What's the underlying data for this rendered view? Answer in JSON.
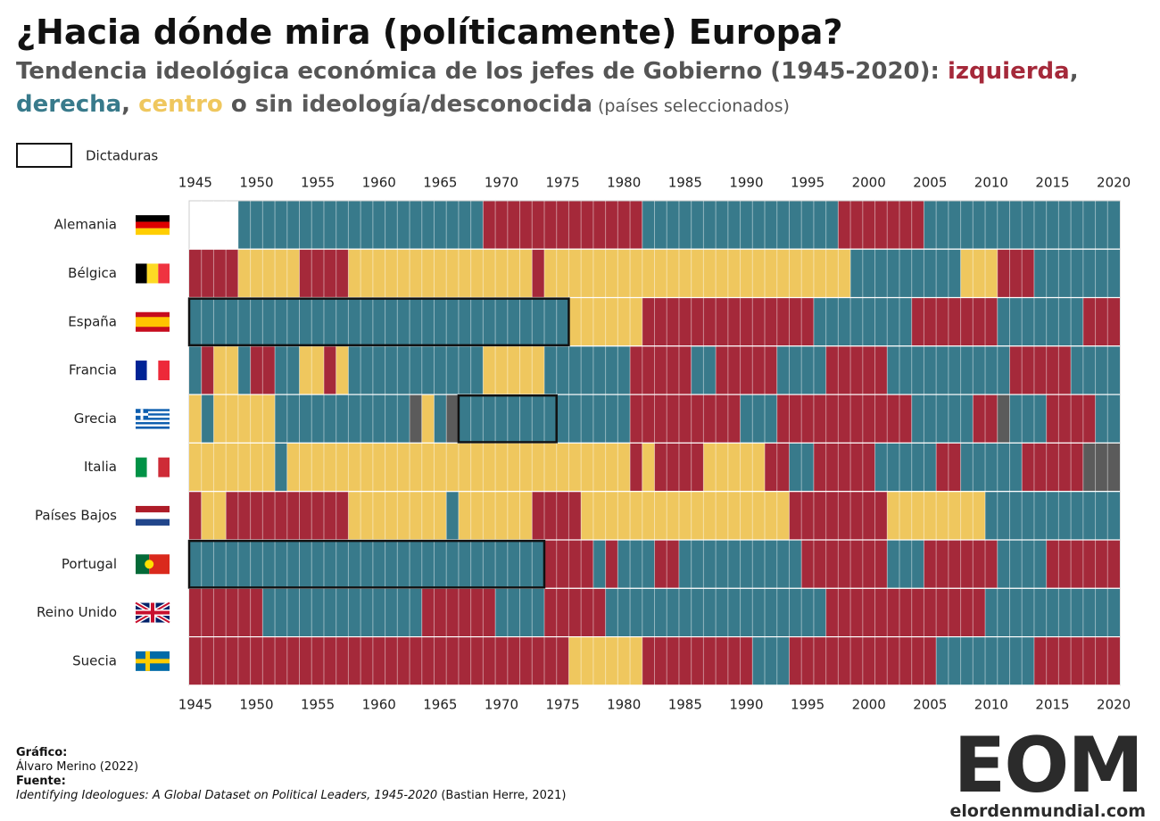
{
  "chart_data": {
    "type": "heatmap",
    "title": "¿Hacia dónde mira (políticamente) Europa?",
    "subtitle": [
      {
        "text": "Tendencia ideológica económica de los jefes de Gobierno (1945-2020): "
      },
      {
        "text": "izquierda",
        "color": "#a5293a"
      },
      {
        "text": ", "
      },
      {
        "text": "derecha",
        "color": "#387a8b"
      },
      {
        "text": ", "
      },
      {
        "text": "centro",
        "color": "#efc75e"
      },
      {
        "text": " o "
      },
      {
        "text": "sin ideología/desconocida",
        "color": "#5b5b5b"
      },
      {
        "text": " (países seleccionados)",
        "small": true
      }
    ],
    "legend": "Dictaduras",
    "xlim": [
      1945,
      2020
    ],
    "xticks": [
      1945,
      1950,
      1955,
      1960,
      1965,
      1970,
      1975,
      1980,
      1985,
      1990,
      1995,
      2000,
      2005,
      2010,
      2015,
      2020
    ],
    "rows": [
      {
        "name": "Alemania",
        "segments": [
          {
            "from": 1949,
            "to": 1968,
            "ideology": "derecha"
          },
          {
            "from": 1969,
            "to": 1981,
            "ideology": "izquierda"
          },
          {
            "from": 1982,
            "to": 1997,
            "ideology": "derecha"
          },
          {
            "from": 1998,
            "to": 2004,
            "ideology": "izquierda"
          },
          {
            "from": 2005,
            "to": 2020,
            "ideology": "derecha"
          }
        ],
        "dictatorships": []
      },
      {
        "name": "Bélgica",
        "segments": [
          {
            "from": 1945,
            "to": 1948,
            "ideology": "izquierda"
          },
          {
            "from": 1949,
            "to": 1953,
            "ideology": "centro"
          },
          {
            "from": 1954,
            "to": 1957,
            "ideology": "izquierda"
          },
          {
            "from": 1958,
            "to": 1972,
            "ideology": "centro"
          },
          {
            "from": 1973,
            "to": 1973,
            "ideology": "izquierda"
          },
          {
            "from": 1974,
            "to": 1998,
            "ideology": "centro"
          },
          {
            "from": 1999,
            "to": 2007,
            "ideology": "derecha"
          },
          {
            "from": 2008,
            "to": 2010,
            "ideology": "centro"
          },
          {
            "from": 2011,
            "to": 2013,
            "ideology": "izquierda"
          },
          {
            "from": 2014,
            "to": 2020,
            "ideology": "derecha"
          }
        ],
        "dictatorships": []
      },
      {
        "name": "España",
        "segments": [
          {
            "from": 1945,
            "to": 1975,
            "ideology": "derecha"
          },
          {
            "from": 1976,
            "to": 1981,
            "ideology": "centro"
          },
          {
            "from": 1982,
            "to": 1995,
            "ideology": "izquierda"
          },
          {
            "from": 1996,
            "to": 2003,
            "ideology": "derecha"
          },
          {
            "from": 2004,
            "to": 2010,
            "ideology": "izquierda"
          },
          {
            "from": 2011,
            "to": 2017,
            "ideology": "derecha"
          },
          {
            "from": 2018,
            "to": 2020,
            "ideology": "izquierda"
          }
        ],
        "dictatorships": [
          {
            "from": 1945,
            "to": 1975
          }
        ]
      },
      {
        "name": "Francia",
        "segments": [
          {
            "from": 1945,
            "to": 1945,
            "ideology": "derecha"
          },
          {
            "from": 1946,
            "to": 1946,
            "ideology": "izquierda"
          },
          {
            "from": 1947,
            "to": 1948,
            "ideology": "centro"
          },
          {
            "from": 1949,
            "to": 1949,
            "ideology": "derecha"
          },
          {
            "from": 1950,
            "to": 1951,
            "ideology": "izquierda"
          },
          {
            "from": 1952,
            "to": 1953,
            "ideology": "derecha"
          },
          {
            "from": 1954,
            "to": 1955,
            "ideology": "centro"
          },
          {
            "from": 1956,
            "to": 1956,
            "ideology": "izquierda"
          },
          {
            "from": 1957,
            "to": 1957,
            "ideology": "centro"
          },
          {
            "from": 1958,
            "to": 1968,
            "ideology": "derecha"
          },
          {
            "from": 1969,
            "to": 1973,
            "ideology": "centro"
          },
          {
            "from": 1974,
            "to": 1980,
            "ideology": "derecha"
          },
          {
            "from": 1981,
            "to": 1985,
            "ideology": "izquierda"
          },
          {
            "from": 1986,
            "to": 1987,
            "ideology": "derecha"
          },
          {
            "from": 1988,
            "to": 1992,
            "ideology": "izquierda"
          },
          {
            "from": 1993,
            "to": 1996,
            "ideology": "derecha"
          },
          {
            "from": 1997,
            "to": 2001,
            "ideology": "izquierda"
          },
          {
            "from": 2002,
            "to": 2011,
            "ideology": "derecha"
          },
          {
            "from": 2012,
            "to": 2016,
            "ideology": "izquierda"
          },
          {
            "from": 2017,
            "to": 2020,
            "ideology": "derecha"
          }
        ],
        "dictatorships": []
      },
      {
        "name": "Grecia",
        "segments": [
          {
            "from": 1945,
            "to": 1945,
            "ideology": "centro"
          },
          {
            "from": 1946,
            "to": 1946,
            "ideology": "derecha"
          },
          {
            "from": 1947,
            "to": 1951,
            "ideology": "centro"
          },
          {
            "from": 1952,
            "to": 1962,
            "ideology": "derecha"
          },
          {
            "from": 1963,
            "to": 1963,
            "ideology": "sin ideología/desconocida"
          },
          {
            "from": 1964,
            "to": 1964,
            "ideology": "centro"
          },
          {
            "from": 1965,
            "to": 1965,
            "ideology": "derecha"
          },
          {
            "from": 1966,
            "to": 1966,
            "ideology": "sin ideología/desconocida"
          },
          {
            "from": 1967,
            "to": 1980,
            "ideology": "derecha"
          },
          {
            "from": 1981,
            "to": 1989,
            "ideology": "izquierda"
          },
          {
            "from": 1990,
            "to": 1992,
            "ideology": "derecha"
          },
          {
            "from": 1993,
            "to": 2003,
            "ideology": "izquierda"
          },
          {
            "from": 2004,
            "to": 2008,
            "ideology": "derecha"
          },
          {
            "from": 2009,
            "to": 2010,
            "ideology": "izquierda"
          },
          {
            "from": 2011,
            "to": 2011,
            "ideology": "sin ideología/desconocida"
          },
          {
            "from": 2012,
            "to": 2014,
            "ideology": "derecha"
          },
          {
            "from": 2015,
            "to": 2018,
            "ideology": "izquierda"
          },
          {
            "from": 2019,
            "to": 2020,
            "ideology": "derecha"
          }
        ],
        "dictatorships": [
          {
            "from": 1967,
            "to": 1974
          }
        ]
      },
      {
        "name": "Italia",
        "segments": [
          {
            "from": 1945,
            "to": 1951,
            "ideology": "centro"
          },
          {
            "from": 1952,
            "to": 1952,
            "ideology": "derecha"
          },
          {
            "from": 1953,
            "to": 1980,
            "ideology": "centro"
          },
          {
            "from": 1981,
            "to": 1981,
            "ideology": "izquierda"
          },
          {
            "from": 1982,
            "to": 1982,
            "ideology": "centro"
          },
          {
            "from": 1983,
            "to": 1986,
            "ideology": "izquierda"
          },
          {
            "from": 1987,
            "to": 1991,
            "ideology": "centro"
          },
          {
            "from": 1992,
            "to": 1993,
            "ideology": "izquierda"
          },
          {
            "from": 1994,
            "to": 1995,
            "ideology": "derecha"
          },
          {
            "from": 1996,
            "to": 2000,
            "ideology": "izquierda"
          },
          {
            "from": 2001,
            "to": 2005,
            "ideology": "derecha"
          },
          {
            "from": 2006,
            "to": 2007,
            "ideology": "izquierda"
          },
          {
            "from": 2008,
            "to": 2012,
            "ideology": "derecha"
          },
          {
            "from": 2013,
            "to": 2017,
            "ideology": "izquierda"
          },
          {
            "from": 2018,
            "to": 2020,
            "ideology": "sin ideología/desconocida"
          }
        ],
        "dictatorships": []
      },
      {
        "name": "Países Bajos",
        "segments": [
          {
            "from": 1945,
            "to": 1945,
            "ideology": "izquierda"
          },
          {
            "from": 1946,
            "to": 1947,
            "ideology": "centro"
          },
          {
            "from": 1948,
            "to": 1957,
            "ideology": "izquierda"
          },
          {
            "from": 1958,
            "to": 1965,
            "ideology": "centro"
          },
          {
            "from": 1966,
            "to": 1966,
            "ideology": "derecha"
          },
          {
            "from": 1967,
            "to": 1972,
            "ideology": "centro"
          },
          {
            "from": 1973,
            "to": 1976,
            "ideology": "izquierda"
          },
          {
            "from": 1977,
            "to": 1993,
            "ideology": "centro"
          },
          {
            "from": 1994,
            "to": 2001,
            "ideology": "izquierda"
          },
          {
            "from": 2002,
            "to": 2009,
            "ideology": "centro"
          },
          {
            "from": 2010,
            "to": 2020,
            "ideology": "derecha"
          }
        ],
        "dictatorships": []
      },
      {
        "name": "Portugal",
        "segments": [
          {
            "from": 1945,
            "to": 1973,
            "ideology": "derecha"
          },
          {
            "from": 1974,
            "to": 1977,
            "ideology": "izquierda"
          },
          {
            "from": 1978,
            "to": 1978,
            "ideology": "derecha"
          },
          {
            "from": 1979,
            "to": 1979,
            "ideology": "izquierda"
          },
          {
            "from": 1980,
            "to": 1982,
            "ideology": "derecha"
          },
          {
            "from": 1983,
            "to": 1984,
            "ideology": "izquierda"
          },
          {
            "from": 1985,
            "to": 1994,
            "ideology": "derecha"
          },
          {
            "from": 1995,
            "to": 2001,
            "ideology": "izquierda"
          },
          {
            "from": 2002,
            "to": 2004,
            "ideology": "derecha"
          },
          {
            "from": 2005,
            "to": 2010,
            "ideology": "izquierda"
          },
          {
            "from": 2011,
            "to": 2014,
            "ideology": "derecha"
          },
          {
            "from": 2015,
            "to": 2020,
            "ideology": "izquierda"
          }
        ],
        "dictatorships": [
          {
            "from": 1945,
            "to": 1973
          }
        ]
      },
      {
        "name": "Reino Unido",
        "segments": [
          {
            "from": 1945,
            "to": 1950,
            "ideology": "izquierda"
          },
          {
            "from": 1951,
            "to": 1963,
            "ideology": "derecha"
          },
          {
            "from": 1964,
            "to": 1969,
            "ideology": "izquierda"
          },
          {
            "from": 1970,
            "to": 1973,
            "ideology": "derecha"
          },
          {
            "from": 1974,
            "to": 1978,
            "ideology": "izquierda"
          },
          {
            "from": 1979,
            "to": 1996,
            "ideology": "derecha"
          },
          {
            "from": 1997,
            "to": 2009,
            "ideology": "izquierda"
          },
          {
            "from": 2010,
            "to": 2020,
            "ideology": "derecha"
          }
        ],
        "dictatorships": []
      },
      {
        "name": "Suecia",
        "segments": [
          {
            "from": 1945,
            "to": 1975,
            "ideology": "izquierda"
          },
          {
            "from": 1976,
            "to": 1981,
            "ideology": "centro"
          },
          {
            "from": 1982,
            "to": 1990,
            "ideology": "izquierda"
          },
          {
            "from": 1991,
            "to": 1993,
            "ideology": "derecha"
          },
          {
            "from": 1994,
            "to": 2005,
            "ideology": "izquierda"
          },
          {
            "from": 2006,
            "to": 2013,
            "ideology": "derecha"
          },
          {
            "from": 2014,
            "to": 2020,
            "ideology": "izquierda"
          }
        ],
        "dictatorships": []
      }
    ]
  },
  "footer": {
    "graphic_label": "Gráfico:",
    "graphic_author": "Álvaro Merino (2022)",
    "source_label": "Fuente:",
    "source_title": "Identifying Ideologues: A Global Dataset on Political Leaders, 1945-2020",
    "source_author": " (Bastian Herre, 2021)"
  },
  "logo": {
    "mark": "EOM",
    "url": "elordenmundial.com"
  }
}
